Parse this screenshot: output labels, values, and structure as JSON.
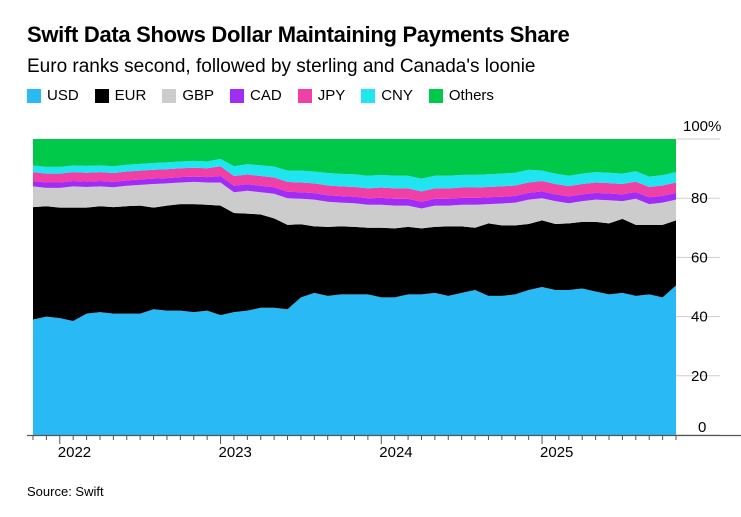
{
  "title": "Swift Data Shows Dollar Maintaining Payments Share",
  "subtitle": "Euro ranks second, followed by sterling and Canada's loonie",
  "source": "Source: Swift",
  "chart_data": {
    "type": "area",
    "stacked": true,
    "x_start": "2021-11",
    "x_end": "2025-11",
    "x_frequency": "monthly",
    "x_tick_labels": [
      "2022",
      "2023",
      "2024",
      "2025"
    ],
    "y_tick_labels": [
      "0",
      "20",
      "40",
      "60",
      "80",
      "100%"
    ],
    "ylim": [
      0,
      100
    ],
    "y_axis_side": "right",
    "grid": true,
    "legend_placement": "top",
    "series": [
      {
        "name": "USD",
        "color": "#29b9f5",
        "values": [
          39,
          40,
          39.5,
          38.5,
          41,
          41.5,
          41,
          41,
          41,
          42.5,
          42,
          42,
          41.5,
          42,
          40.5,
          41.5,
          42,
          43,
          43,
          42.5,
          46.5,
          48,
          47,
          47.5,
          47.5,
          47.5,
          46.5,
          46.5,
          47.5,
          47.5,
          48,
          47,
          48,
          49,
          47,
          47,
          47.5,
          49,
          50,
          49,
          49,
          49.5,
          48.5,
          47.5,
          48,
          47,
          47.5,
          46.5,
          50.5
        ]
      },
      {
        "name": "EUR",
        "color": "#000000",
        "values": [
          38,
          37.3,
          37.3,
          38.3,
          35.8,
          35.8,
          36,
          36.3,
          36.5,
          34.3,
          35.5,
          36,
          36.5,
          35.8,
          37,
          33.5,
          32.8,
          31.5,
          30.2,
          28.5,
          24.7,
          22.5,
          23.3,
          23,
          22.8,
          22.5,
          23.5,
          23.3,
          22.8,
          22.3,
          22.3,
          23.5,
          22.5,
          21,
          24.5,
          23.8,
          23.3,
          22.3,
          22.5,
          22.3,
          22.5,
          22.5,
          23.5,
          24,
          25,
          24,
          23.5,
          24.5,
          22
        ]
      },
      {
        "name": "GBP",
        "color": "#cccccc",
        "values": [
          7,
          6.2,
          6.7,
          7.2,
          7,
          6.7,
          6.7,
          6.9,
          7,
          8,
          7.5,
          7.3,
          7.5,
          7.5,
          7.8,
          7,
          7.7,
          7.5,
          8.3,
          9,
          8.6,
          9,
          8.5,
          8,
          8,
          7.8,
          7.8,
          7.7,
          7.2,
          6.7,
          7.2,
          7,
          7.3,
          7.8,
          6.5,
          7.4,
          7.7,
          8.2,
          7.5,
          7.7,
          6.8,
          7,
          7.5,
          7.8,
          6,
          8.8,
          7,
          7.5,
          7
        ]
      },
      {
        "name": "CAD",
        "color": "#a12cf5",
        "values": [
          1.8,
          1.8,
          1.8,
          1.8,
          1.8,
          1.8,
          1.8,
          1.8,
          1.8,
          1.8,
          1.8,
          1.8,
          1.8,
          1.8,
          2.2,
          2.2,
          2.2,
          2.2,
          2.2,
          2.2,
          2.2,
          2.2,
          2.2,
          2.2,
          2.2,
          2.2,
          2.3,
          2.3,
          2.3,
          2.3,
          2.3,
          2.3,
          2.3,
          2.3,
          2.3,
          2.3,
          2.3,
          2.3,
          2.3,
          2.3,
          2.3,
          2.3,
          2.3,
          2.3,
          2.3,
          2.3,
          2.3,
          2.3,
          2.3
        ]
      },
      {
        "name": "JPY",
        "color": "#f03fa5",
        "values": [
          3,
          3,
          3,
          3,
          3,
          3,
          3,
          3,
          3,
          3,
          3,
          3,
          3,
          3,
          3.3,
          3.3,
          3.3,
          3.3,
          3.3,
          3.3,
          3.3,
          3.3,
          3.3,
          3.3,
          3.3,
          3.3,
          3.5,
          3.5,
          3.5,
          3.5,
          3.5,
          3.5,
          3.5,
          3.5,
          3.5,
          3.5,
          3.5,
          3.5,
          3.5,
          3.5,
          3.5,
          3.5,
          3.5,
          3.5,
          3.5,
          3.5,
          3.5,
          3.5,
          3.5
        ]
      },
      {
        "name": "CNY",
        "color": "#1ee5f0",
        "values": [
          2.3,
          2.3,
          2.3,
          2.3,
          2.3,
          2.3,
          2.3,
          2.3,
          2.3,
          2.3,
          2.3,
          2.3,
          2.3,
          2.3,
          2.5,
          3.3,
          3.5,
          3.6,
          3.7,
          3.8,
          4,
          4,
          4.2,
          4.2,
          4.3,
          4.3,
          4.3,
          4.3,
          4.3,
          4.3,
          4.3,
          4.3,
          4.3,
          4.3,
          4.3,
          4.3,
          4.3,
          4.3,
          3.5,
          3.5,
          3.5,
          3.5,
          3.5,
          3.5,
          3.5,
          3.5,
          3.5,
          3.5,
          3.5
        ]
      },
      {
        "name": "Others",
        "color": "#00c94a",
        "values": [
          8.9,
          9.4,
          9.4,
          8.9,
          9.1,
          8.9,
          9.2,
          8.7,
          8.4,
          8.1,
          7.9,
          7.6,
          7.4,
          7.6,
          6.7,
          9.2,
          8.5,
          8.9,
          9.3,
          10.7,
          10.7,
          11,
          11.5,
          11.8,
          11.9,
          12.4,
          12.1,
          12.4,
          12.4,
          13.4,
          12.4,
          12.4,
          12.1,
          12.1,
          11.9,
          11.7,
          11.4,
          10.4,
          10.7,
          11.7,
          12.4,
          11.7,
          11.2,
          11.4,
          11.7,
          10.9,
          12.7,
          12.2,
          11.2
        ]
      }
    ]
  }
}
